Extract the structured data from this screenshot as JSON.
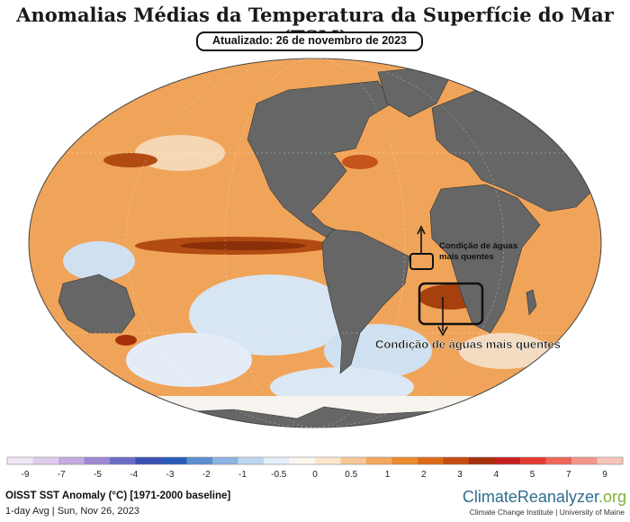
{
  "header": {
    "title": "Anomalias Médias da Temperatura da Superfície do Mar (TSM)",
    "updated": "Atualizado: 26 de novembro de 2023"
  },
  "annotations": {
    "small_label_line1": "Condição de águas",
    "small_label_line2": "mais quentes",
    "large_label": "Condição de águas mais quentes"
  },
  "colorbar": {
    "ticks": [
      "-9",
      "-7",
      "-5",
      "-4",
      "-3",
      "-2",
      "-1",
      "-0.5",
      "0",
      "0.5",
      "1",
      "2",
      "3",
      "4",
      "5",
      "7",
      "9"
    ],
    "colors": [
      "#f1e6f6",
      "#e0cdee",
      "#c6abe2",
      "#9f88d6",
      "#6c6cc6",
      "#3a4fb4",
      "#2a5cba",
      "#5a8fd0",
      "#8bb4e0",
      "#bcd7ef",
      "#e3eef8",
      "#fbf6ee",
      "#fde7cc",
      "#f9c896",
      "#f4a85c",
      "#ec8a2e",
      "#de6a16",
      "#c64a0e",
      "#a6300a",
      "#c81e1e",
      "#e23a2e",
      "#ee6658",
      "#f4968a",
      "#f9c4b8"
    ]
  },
  "footer": {
    "line1": "OISST SST Anomaly (°C) [1971-2000 baseline]",
    "line2": "1-day Avg | Sun, Nov 26, 2023",
    "brand_main": "ClimateReanalyzer",
    "brand_suffix": ".org",
    "brand_sub": "Climate Change Institute | University of Maine"
  },
  "legend_colors": {
    "land": "#666666",
    "warm": "#f3a556",
    "hot": "#a8430c",
    "cool": "#c9dcf0"
  }
}
